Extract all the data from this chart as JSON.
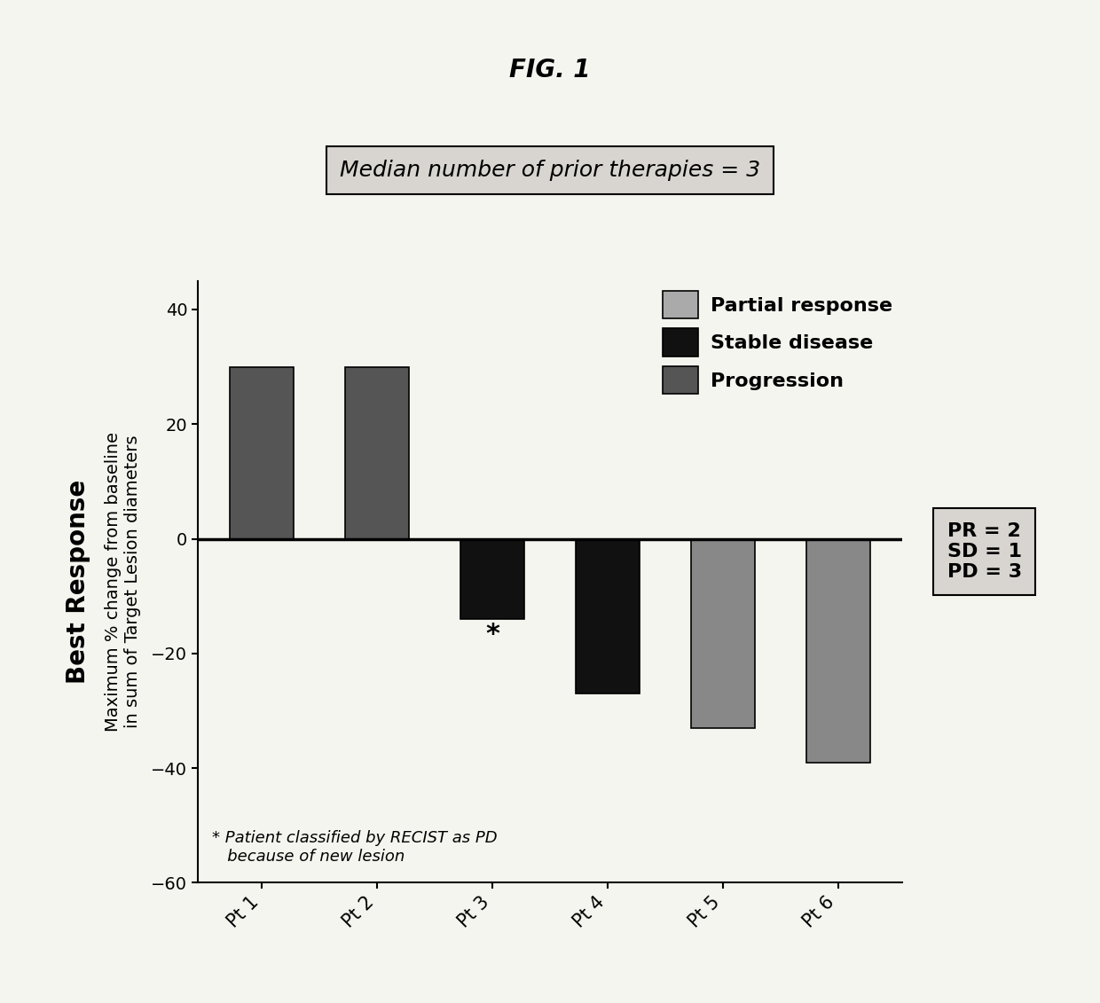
{
  "title": "FIG. 1",
  "subtitle": "Median number of prior therapies = 3",
  "categories": [
    "Pt 1",
    "Pt 2",
    "Pt 3",
    "Pt 4",
    "Pt 5",
    "Pt 6"
  ],
  "values": [
    30,
    30,
    -14,
    -27,
    -33,
    -39
  ],
  "bar_colors": [
    "#555555",
    "#555555",
    "#111111",
    "#111111",
    "#888888",
    "#888888"
  ],
  "legend_colors": [
    "#aaaaaa",
    "#111111",
    "#555555"
  ],
  "legend_labels": [
    "Partial response",
    "Stable disease",
    "Progression"
  ],
  "ylabel_main": "Best Response",
  "ylabel_sub1": "Maximum % change from baseline",
  "ylabel_sub2": "in sum of Target Lesion diameters",
  "ylim": [
    -60,
    45
  ],
  "yticks": [
    -60,
    -40,
    -20,
    0,
    20,
    40
  ],
  "annotation_line1": "* Patient classified by RECIST as PD",
  "annotation_line2": "   because of new lesion",
  "stats_text": "PR = 2\nSD = 1\nPD = 3",
  "background_color": "#f5f5f0",
  "plot_bg_color": "#ffffff",
  "subtitle_bg": "#d8d5d0",
  "bar_edge_color": "#000000",
  "title_fontsize": 20,
  "subtitle_fontsize": 18,
  "axis_label_fontsize": 14,
  "ylabel_main_fontsize": 20,
  "tick_fontsize": 14,
  "legend_fontsize": 16,
  "annotation_fontsize": 13,
  "stats_fontsize": 16
}
